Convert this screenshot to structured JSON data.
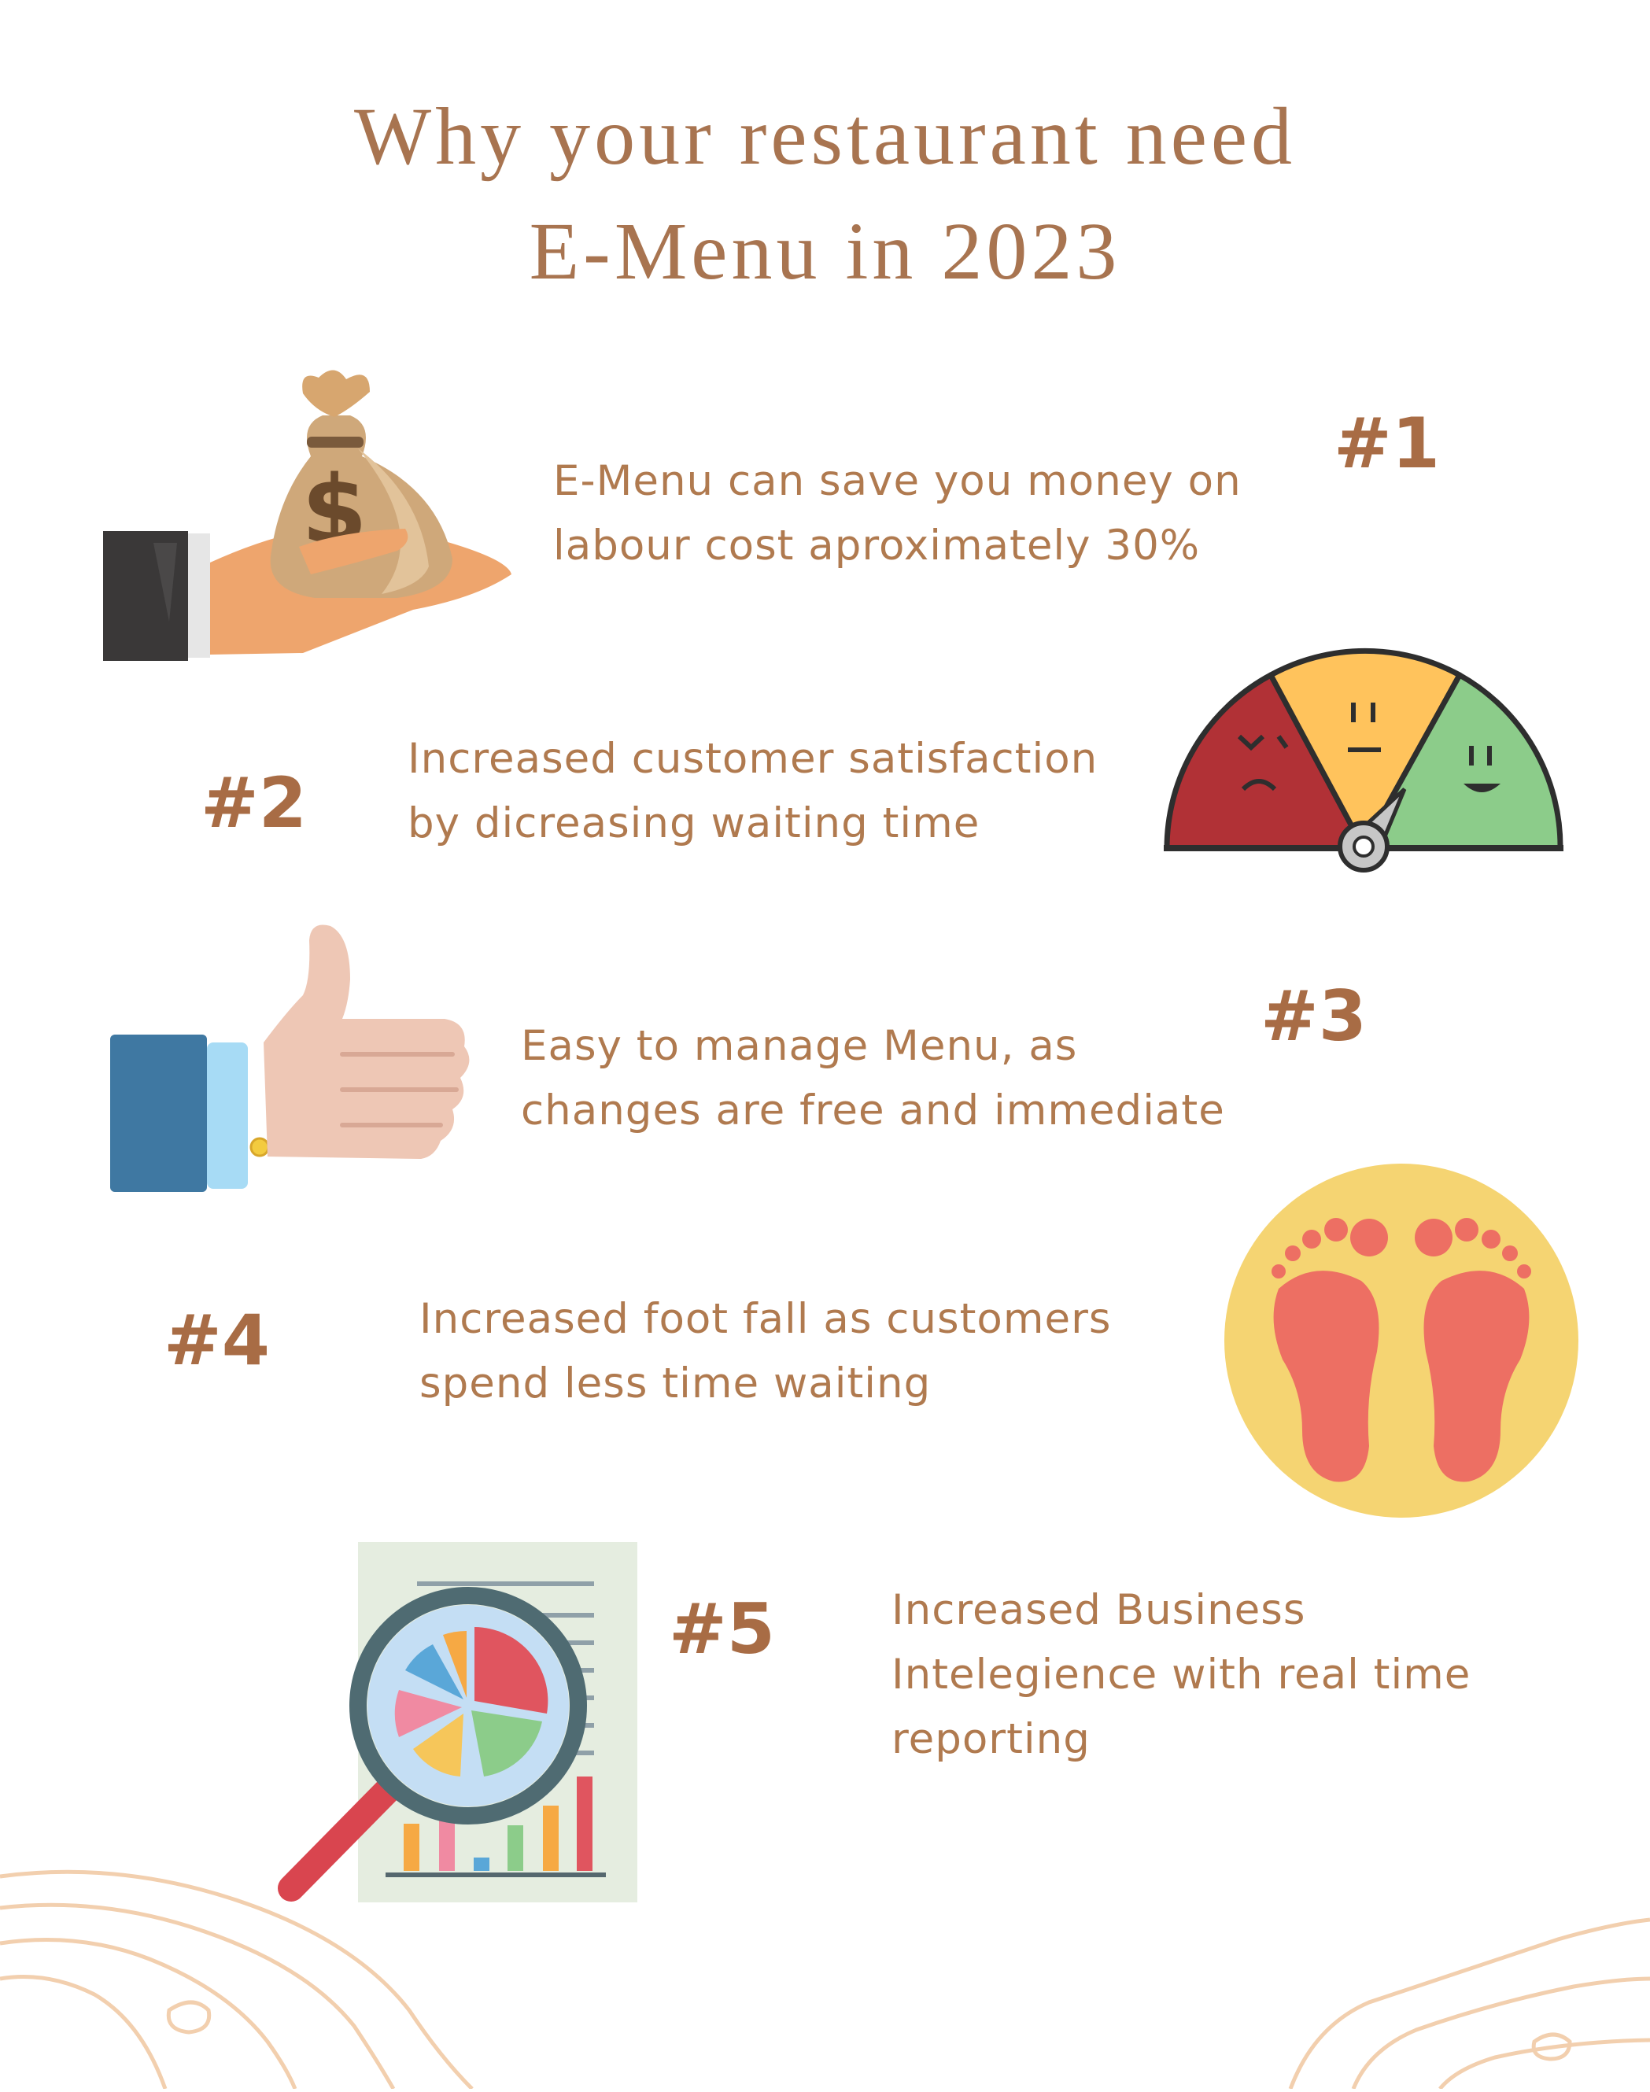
{
  "title": {
    "line1": "Why your restaurant need",
    "line2": "E-Menu in 2023"
  },
  "items": [
    {
      "number": "#1",
      "lines": [
        "E-Menu can save you money on",
        "labour cost aproximately 30%"
      ],
      "icon": "hand-money-bag-icon"
    },
    {
      "number": "#2",
      "lines": [
        "Increased customer satisfaction",
        "by dicreasing waiting time"
      ],
      "icon": "satisfaction-meter-icon"
    },
    {
      "number": "#3",
      "lines": [
        "Easy to manage Menu, as",
        "changes are free and immediate"
      ],
      "icon": "thumbs-up-icon"
    },
    {
      "number": "#4",
      "lines": [
        "Increased foot fall as customers",
        "spend less time waiting"
      ],
      "icon": "footprints-icon"
    },
    {
      "number": "#5",
      "lines": [
        "Increased Business",
        "Intelegience with real time",
        "reporting"
      ],
      "icon": "report-magnifier-icon"
    }
  ],
  "colors": {
    "accent": "#a86c45",
    "text": "#b07a4f",
    "background": "#ffffff"
  }
}
